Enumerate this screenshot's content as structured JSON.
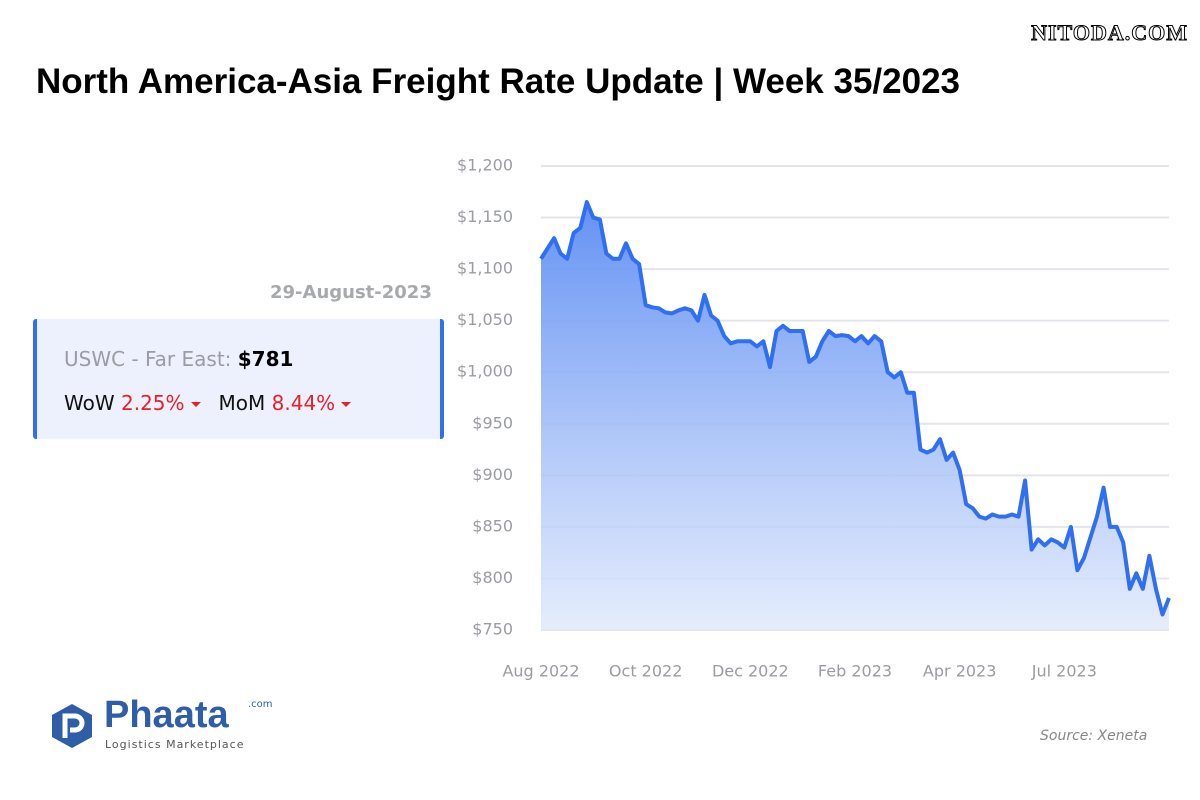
{
  "watermark": "NITODA.COM",
  "card": {
    "date": "29-August-2023",
    "route": "USWC - Far East:",
    "price": "$781",
    "wow_label": "WoW",
    "wow": "2.25%",
    "mom_label": "MoM",
    "mom": "8.44%"
  },
  "logo": {
    "name": "Phaata",
    "suffix": ".com",
    "tagline": "Logistics Marketplace"
  },
  "source": "Source: Xeneta",
  "chart_data": {
    "type": "area",
    "title": "North America-Asia Freight Rate Update | Week 35/2023",
    "color": "#2f6ff0",
    "grid": true,
    "categories": [
      "Aug 2022",
      null,
      null,
      null,
      null,
      null,
      null,
      null,
      null,
      null,
      null,
      null,
      null,
      null,
      null,
      null,
      "Oct 2022",
      null,
      null,
      null,
      null,
      null,
      null,
      null,
      null,
      null,
      null,
      null,
      null,
      null,
      null,
      null,
      "Dec 2022",
      null,
      null,
      null,
      null,
      null,
      null,
      null,
      null,
      null,
      null,
      null,
      null,
      null,
      null,
      null,
      "Feb 2023",
      null,
      null,
      null,
      null,
      null,
      null,
      null,
      null,
      null,
      null,
      null,
      null,
      null,
      null,
      null,
      "Apr 2023",
      null,
      null,
      null,
      null,
      null,
      null,
      null,
      null,
      null,
      null,
      null,
      null,
      null,
      null,
      null,
      "Jul 2023",
      null,
      null,
      null,
      null,
      null,
      null,
      null,
      null,
      null,
      null,
      null,
      null,
      null,
      null,
      null,
      null
    ],
    "values": [
      1110,
      1120,
      1130,
      1115,
      1110,
      1135,
      1140,
      1165,
      1150,
      1148,
      1115,
      1110,
      1110,
      1125,
      1110,
      1105,
      1065,
      1063,
      1062,
      1058,
      1057,
      1060,
      1062,
      1060,
      1050,
      1075,
      1055,
      1050,
      1035,
      1028,
      1030,
      1030,
      1030,
      1025,
      1030,
      1005,
      1040,
      1045,
      1040,
      1040,
      1040,
      1010,
      1015,
      1030,
      1040,
      1035,
      1036,
      1035,
      1030,
      1035,
      1028,
      1035,
      1030,
      1000,
      995,
      1000,
      980,
      980,
      925,
      922,
      925,
      935,
      915,
      922,
      905,
      872,
      868,
      860,
      858,
      862,
      860,
      860,
      862,
      860,
      895,
      828,
      838,
      832,
      838,
      835,
      830,
      850,
      808,
      820,
      840,
      860,
      888,
      850,
      850,
      835,
      790,
      805,
      790,
      822,
      790,
      765,
      781
    ],
    "ylim": [
      750,
      1200
    ],
    "yticks": [
      {
        "value": 750,
        "label": "$750"
      },
      {
        "value": 800,
        "label": "$800"
      },
      {
        "value": 850,
        "label": "$850"
      },
      {
        "value": 900,
        "label": "$900"
      },
      {
        "value": 950,
        "label": "$950"
      },
      {
        "value": 1000,
        "label": "$1,000"
      },
      {
        "value": 1050,
        "label": "$1,050"
      },
      {
        "value": 1100,
        "label": "$1,100"
      },
      {
        "value": 1150,
        "label": "$1,150"
      },
      {
        "value": 1200,
        "label": "$1,200"
      }
    ]
  }
}
